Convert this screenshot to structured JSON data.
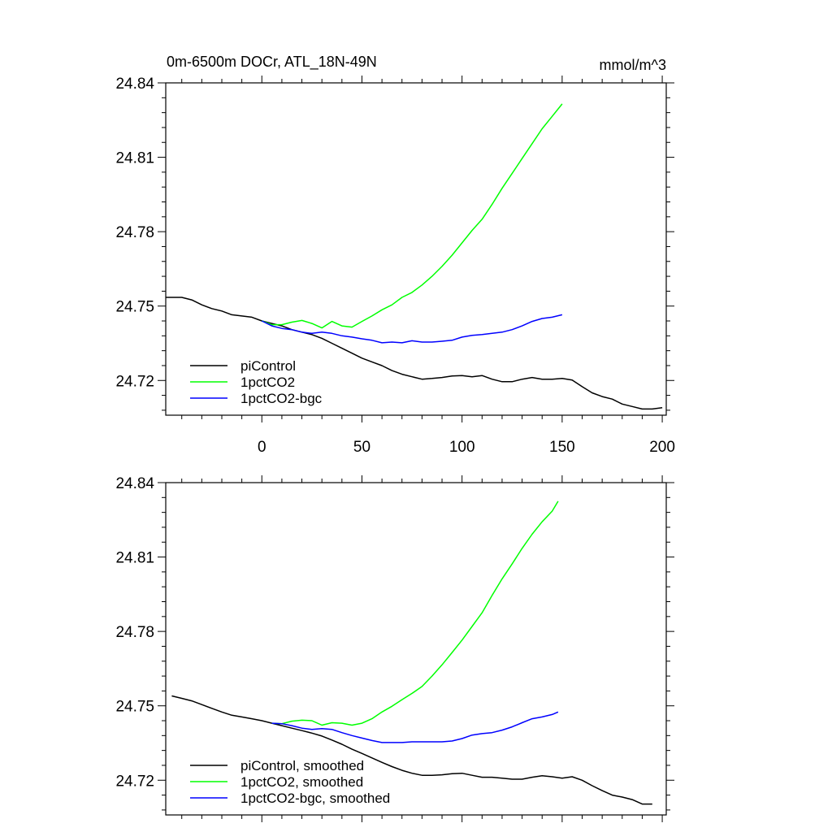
{
  "figure": {
    "title_left": "0m-6500m DOCr, ATL_18N-49N",
    "title_right": "mmol/m^3"
  },
  "chart_data": [
    {
      "type": "line",
      "title": "0m-6500m DOCr, ATL_18N-49N",
      "units": "mmol/m^3",
      "xlim": [
        -48,
        202
      ],
      "ylim": [
        24.706,
        24.84
      ],
      "xticks": [
        0,
        50,
        100,
        150,
        200
      ],
      "xtick_labels": [
        "0",
        "50",
        "100",
        "150",
        "200"
      ],
      "yticks": [
        24.72,
        24.75,
        24.78,
        24.81,
        24.84
      ],
      "ytick_labels": [
        "24.72",
        "24.75",
        "24.78",
        "24.81",
        "24.84"
      ],
      "grid": false,
      "legend_position": "bottom-left",
      "series": [
        {
          "name": "piControl",
          "color": "#000000",
          "x": [
            -48,
            -40,
            -35,
            -30,
            -25,
            -20,
            -15,
            -10,
            -5,
            0,
            5,
            10,
            15,
            20,
            25,
            30,
            35,
            40,
            45,
            50,
            55,
            60,
            65,
            70,
            75,
            80,
            85,
            90,
            95,
            100,
            105,
            110,
            115,
            120,
            125,
            130,
            135,
            140,
            145,
            150,
            155,
            160,
            165,
            170,
            175,
            180,
            185,
            190,
            195,
            200
          ],
          "y": [
            24.7535,
            24.7535,
            24.7525,
            24.7505,
            24.749,
            24.748,
            24.7465,
            24.746,
            24.7455,
            24.744,
            24.743,
            24.742,
            24.7405,
            24.7395,
            24.7385,
            24.737,
            24.735,
            24.733,
            24.731,
            24.729,
            24.7275,
            24.726,
            24.724,
            24.7225,
            24.7215,
            24.7205,
            24.7208,
            24.7212,
            24.7218,
            24.722,
            24.7215,
            24.722,
            24.7205,
            24.7195,
            24.7195,
            24.7205,
            24.7212,
            24.7205,
            24.7205,
            24.7208,
            24.7202,
            24.7175,
            24.715,
            24.7135,
            24.7125,
            24.7105,
            24.7095,
            24.7085,
            24.7085,
            24.709
          ]
        },
        {
          "name": "1pctCO2",
          "color": "#00ff00",
          "x": [
            0,
            5,
            10,
            15,
            20,
            25,
            30,
            35,
            40,
            45,
            50,
            55,
            60,
            65,
            70,
            75,
            80,
            85,
            90,
            95,
            100,
            105,
            110,
            115,
            120,
            125,
            130,
            135,
            140,
            145,
            150
          ],
          "y": [
            24.744,
            24.7425,
            24.7425,
            24.7435,
            24.7442,
            24.743,
            24.7412,
            24.7438,
            24.742,
            24.7415,
            24.7438,
            24.746,
            24.7485,
            24.7505,
            24.7535,
            24.7555,
            24.7585,
            24.762,
            24.766,
            24.7705,
            24.7755,
            24.7805,
            24.785,
            24.791,
            24.7975,
            24.8035,
            24.8095,
            24.8155,
            24.8215,
            24.8265,
            24.8315
          ]
        },
        {
          "name": "1pctCO2-bgc",
          "color": "#0000ff",
          "x": [
            0,
            5,
            10,
            15,
            20,
            25,
            30,
            35,
            40,
            45,
            50,
            55,
            60,
            65,
            70,
            75,
            80,
            85,
            90,
            95,
            100,
            105,
            110,
            115,
            120,
            125,
            130,
            135,
            140,
            145,
            150
          ],
          "y": [
            24.744,
            24.742,
            24.741,
            24.7405,
            24.7395,
            24.739,
            24.7395,
            24.739,
            24.738,
            24.7375,
            24.7368,
            24.7362,
            24.7352,
            24.7355,
            24.7352,
            24.736,
            24.7355,
            24.7355,
            24.7358,
            24.7362,
            24.7375,
            24.7382,
            24.7385,
            24.739,
            24.7395,
            24.7405,
            24.742,
            24.7438,
            24.745,
            24.7455,
            24.7465
          ]
        }
      ]
    },
    {
      "type": "line",
      "title": "",
      "xlim": [
        -48,
        202
      ],
      "ylim": [
        24.706,
        24.84
      ],
      "xticks": [
        0,
        50,
        100,
        150,
        200
      ],
      "xtick_labels": [],
      "yticks": [
        24.72,
        24.75,
        24.78,
        24.81,
        24.84
      ],
      "ytick_labels": [
        "24.72",
        "24.75",
        "24.78",
        "24.81",
        "24.84"
      ],
      "grid": false,
      "legend_position": "bottom-left",
      "series": [
        {
          "name": "piControl, smoothed",
          "color": "#000000",
          "x": [
            -45,
            -40,
            -35,
            -30,
            -25,
            -20,
            -15,
            -10,
            -5,
            0,
            5,
            10,
            15,
            20,
            25,
            30,
            35,
            40,
            45,
            50,
            55,
            60,
            65,
            70,
            75,
            80,
            85,
            90,
            95,
            100,
            105,
            110,
            115,
            120,
            125,
            130,
            135,
            140,
            145,
            150,
            155,
            160,
            165,
            170,
            175,
            180,
            185,
            190,
            195
          ],
          "y": [
            24.754,
            24.753,
            24.752,
            24.7505,
            24.749,
            24.7475,
            24.7462,
            24.7455,
            24.7448,
            24.744,
            24.743,
            24.742,
            24.741,
            24.74,
            24.739,
            24.7378,
            24.7362,
            24.7345,
            24.7325,
            24.7308,
            24.729,
            24.7272,
            24.7255,
            24.724,
            24.7228,
            24.722,
            24.722,
            24.7222,
            24.7226,
            24.7228,
            24.722,
            24.7212,
            24.7212,
            24.7208,
            24.7204,
            24.7204,
            24.7212,
            24.7218,
            24.7214,
            24.7208,
            24.7214,
            24.72,
            24.7178,
            24.7158,
            24.714,
            24.7132,
            24.7122,
            24.7104,
            24.7104
          ]
        },
        {
          "name": "1pctCO2, smoothed",
          "color": "#00ff00",
          "x": [
            5,
            10,
            15,
            20,
            25,
            30,
            35,
            40,
            45,
            50,
            55,
            60,
            65,
            70,
            75,
            80,
            85,
            90,
            95,
            100,
            105,
            110,
            115,
            120,
            125,
            130,
            135,
            140,
            145,
            148
          ],
          "y": [
            24.743,
            24.7428,
            24.7438,
            24.7442,
            24.744,
            24.7422,
            24.7432,
            24.743,
            24.7422,
            24.743,
            24.7448,
            24.7475,
            24.7498,
            24.7525,
            24.755,
            24.7578,
            24.762,
            24.7665,
            24.7715,
            24.7765,
            24.782,
            24.7875,
            24.7945,
            24.8012,
            24.8072,
            24.8135,
            24.8192,
            24.8242,
            24.8285,
            24.8325
          ]
        },
        {
          "name": "1pctCO2-bgc, smoothed",
          "color": "#0000ff",
          "x": [
            5,
            10,
            15,
            20,
            25,
            30,
            35,
            40,
            45,
            50,
            55,
            60,
            65,
            70,
            75,
            80,
            85,
            90,
            95,
            100,
            105,
            110,
            115,
            120,
            125,
            130,
            135,
            140,
            145,
            148
          ],
          "y": [
            24.743,
            24.7428,
            24.742,
            24.741,
            24.7405,
            24.7408,
            24.7405,
            24.7392,
            24.738,
            24.737,
            24.736,
            24.7352,
            24.7352,
            24.7352,
            24.7355,
            24.7355,
            24.7355,
            24.7355,
            24.7358,
            24.7368,
            24.7382,
            24.7388,
            24.7392,
            24.7402,
            24.7415,
            24.7432,
            24.7448,
            24.7455,
            24.7465,
            24.7475
          ]
        }
      ]
    }
  ]
}
